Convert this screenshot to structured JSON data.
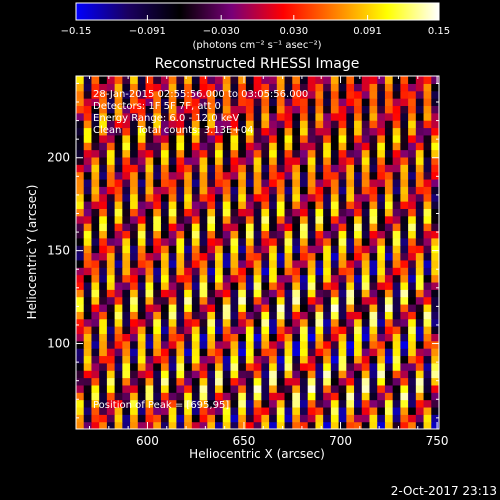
{
  "chart_data": {
    "type": "heatmap",
    "title": "Reconstructed RHESSI Image",
    "xlabel": "Heliocentric X (arcsec)",
    "ylabel": "Heliocentric Y (arcsec)",
    "xlim": [
      563,
      751
    ],
    "ylim": [
      54,
      244
    ],
    "x_ticks": [
      600,
      650,
      700,
      750
    ],
    "y_ticks": [
      100,
      150,
      200
    ],
    "x_tick_labels": [
      "600",
      "650",
      "700",
      "750"
    ],
    "y_tick_labels": [
      "100",
      "150",
      "200"
    ],
    "colorbar": {
      "min": -0.15,
      "max": 0.15,
      "tick_values": [
        -0.15,
        -0.091,
        -0.03,
        0.03,
        0.091,
        0.15
      ],
      "tick_labels": [
        "−0.15",
        "−0.091",
        "−0.030",
        "0.030",
        "0.091",
        "0.15"
      ],
      "unit_label": "(photons cm⁻² s⁻¹ asec⁻²)",
      "colors": [
        "#0000ff",
        "#1a0060",
        "#000000",
        "#780078",
        "#ff0000",
        "#ff8000",
        "#ffff00",
        "#ffffff"
      ]
    },
    "image_grid": {
      "nx": 47,
      "ny": 48,
      "stripe_period_arcsec": 9.4,
      "stripe_tilt": 0.16
    },
    "annotations": [
      "28-Jan-2015 02:55:56.000 to 03:05:56.000",
      "Detectors: 1F 5F 7F, att 0",
      "Energy Range: 6.0 - 12.0 keV",
      "Clean     Total counts: 3.13E+04",
      "Position of Peak = [695,95]"
    ]
  },
  "footer": {
    "date": "2-Oct-2017 23:13"
  }
}
